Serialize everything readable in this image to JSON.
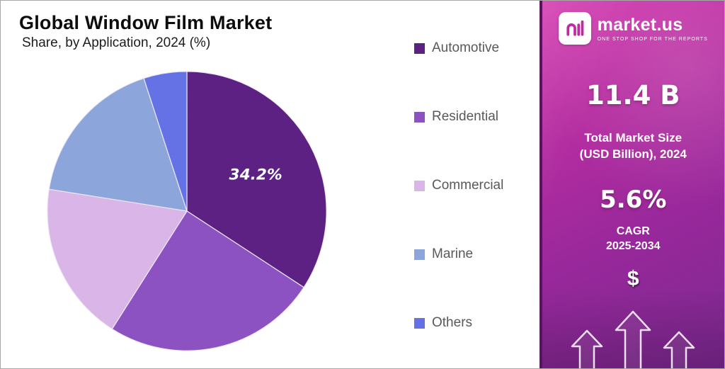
{
  "header": {
    "title": "Global Window Film Market",
    "subtitle": "Share, by Application, 2024 (%)"
  },
  "chart_data": {
    "type": "pie",
    "title": "Global Window Film Market",
    "subtitle": "Share, by Application, 2024 (%)",
    "unit": "%",
    "start_angle_deg": 0,
    "direction": "clockwise",
    "legend_position": "right",
    "series": [
      {
        "name": "Automotive",
        "value": 34.2,
        "color": "#5d2184",
        "label": "34.2%"
      },
      {
        "name": "Residential",
        "value": 24.8,
        "color": "#8c52c2"
      },
      {
        "name": "Commercial",
        "value": 18.5,
        "color": "#d9b5e8"
      },
      {
        "name": "Marine",
        "value": 17.5,
        "color": "#8ca6dc"
      },
      {
        "name": "Others",
        "value": 5.0,
        "color": "#6472e6"
      }
    ]
  },
  "side_panel": {
    "brand": {
      "name": "market.us",
      "tagline": "ONE STOP SHOP FOR THE REPORTS",
      "logo_glyph": "nll",
      "logo_color": "#c22ba0"
    },
    "market_size_value": "11.4 B",
    "market_size_label_line1": "Total Market Size",
    "market_size_label_line2": "(USD Billion), 2024",
    "cagr_value": "5.6%",
    "cagr_label": "CAGR",
    "cagr_period": "2025-2034",
    "dollar_icon": "$",
    "colors": {
      "gradient_top": "#d43bb0",
      "gradient_bottom": "#7c2a90",
      "edge": "#55155f"
    }
  }
}
